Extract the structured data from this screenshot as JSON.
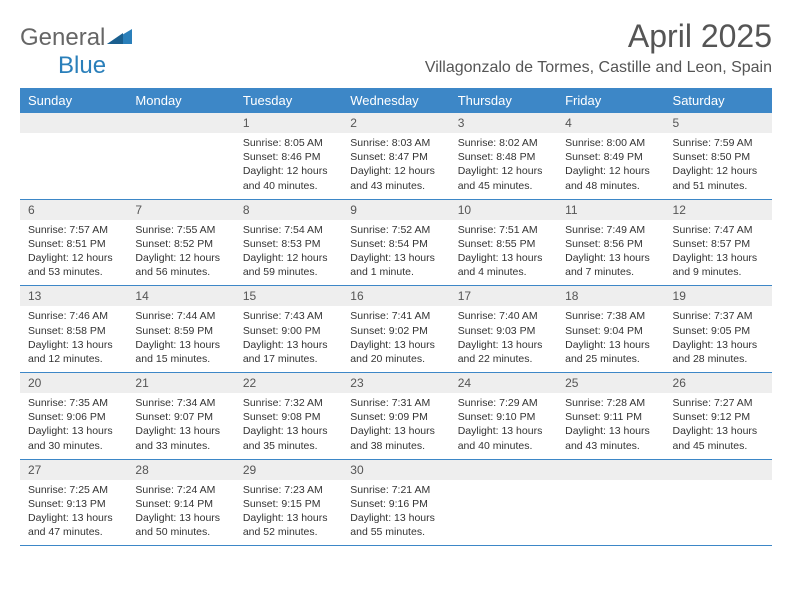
{
  "logo": {
    "word1": "General",
    "word2": "Blue"
  },
  "title": "April 2025",
  "location": "Villagonzalo de Tormes, Castille and Leon, Spain",
  "colors": {
    "header_bg": "#3d87c7",
    "header_text": "#ffffff",
    "daynum_bg": "#eeeeee",
    "text": "#333333",
    "border": "#3d87c7",
    "logo_gray": "#666666",
    "logo_blue": "#2a7fba"
  },
  "day_headers": [
    "Sunday",
    "Monday",
    "Tuesday",
    "Wednesday",
    "Thursday",
    "Friday",
    "Saturday"
  ],
  "weeks": [
    {
      "nums": [
        "",
        "",
        "1",
        "2",
        "3",
        "4",
        "5"
      ],
      "cells": [
        null,
        null,
        {
          "sunrise": "8:05 AM",
          "sunset": "8:46 PM",
          "daylight": "12 hours and 40 minutes."
        },
        {
          "sunrise": "8:03 AM",
          "sunset": "8:47 PM",
          "daylight": "12 hours and 43 minutes."
        },
        {
          "sunrise": "8:02 AM",
          "sunset": "8:48 PM",
          "daylight": "12 hours and 45 minutes."
        },
        {
          "sunrise": "8:00 AM",
          "sunset": "8:49 PM",
          "daylight": "12 hours and 48 minutes."
        },
        {
          "sunrise": "7:59 AM",
          "sunset": "8:50 PM",
          "daylight": "12 hours and 51 minutes."
        }
      ]
    },
    {
      "nums": [
        "6",
        "7",
        "8",
        "9",
        "10",
        "11",
        "12"
      ],
      "cells": [
        {
          "sunrise": "7:57 AM",
          "sunset": "8:51 PM",
          "daylight": "12 hours and 53 minutes."
        },
        {
          "sunrise": "7:55 AM",
          "sunset": "8:52 PM",
          "daylight": "12 hours and 56 minutes."
        },
        {
          "sunrise": "7:54 AM",
          "sunset": "8:53 PM",
          "daylight": "12 hours and 59 minutes."
        },
        {
          "sunrise": "7:52 AM",
          "sunset": "8:54 PM",
          "daylight": "13 hours and 1 minute."
        },
        {
          "sunrise": "7:51 AM",
          "sunset": "8:55 PM",
          "daylight": "13 hours and 4 minutes."
        },
        {
          "sunrise": "7:49 AM",
          "sunset": "8:56 PM",
          "daylight": "13 hours and 7 minutes."
        },
        {
          "sunrise": "7:47 AM",
          "sunset": "8:57 PM",
          "daylight": "13 hours and 9 minutes."
        }
      ]
    },
    {
      "nums": [
        "13",
        "14",
        "15",
        "16",
        "17",
        "18",
        "19"
      ],
      "cells": [
        {
          "sunrise": "7:46 AM",
          "sunset": "8:58 PM",
          "daylight": "13 hours and 12 minutes."
        },
        {
          "sunrise": "7:44 AM",
          "sunset": "8:59 PM",
          "daylight": "13 hours and 15 minutes."
        },
        {
          "sunrise": "7:43 AM",
          "sunset": "9:00 PM",
          "daylight": "13 hours and 17 minutes."
        },
        {
          "sunrise": "7:41 AM",
          "sunset": "9:02 PM",
          "daylight": "13 hours and 20 minutes."
        },
        {
          "sunrise": "7:40 AM",
          "sunset": "9:03 PM",
          "daylight": "13 hours and 22 minutes."
        },
        {
          "sunrise": "7:38 AM",
          "sunset": "9:04 PM",
          "daylight": "13 hours and 25 minutes."
        },
        {
          "sunrise": "7:37 AM",
          "sunset": "9:05 PM",
          "daylight": "13 hours and 28 minutes."
        }
      ]
    },
    {
      "nums": [
        "20",
        "21",
        "22",
        "23",
        "24",
        "25",
        "26"
      ],
      "cells": [
        {
          "sunrise": "7:35 AM",
          "sunset": "9:06 PM",
          "daylight": "13 hours and 30 minutes."
        },
        {
          "sunrise": "7:34 AM",
          "sunset": "9:07 PM",
          "daylight": "13 hours and 33 minutes."
        },
        {
          "sunrise": "7:32 AM",
          "sunset": "9:08 PM",
          "daylight": "13 hours and 35 minutes."
        },
        {
          "sunrise": "7:31 AM",
          "sunset": "9:09 PM",
          "daylight": "13 hours and 38 minutes."
        },
        {
          "sunrise": "7:29 AM",
          "sunset": "9:10 PM",
          "daylight": "13 hours and 40 minutes."
        },
        {
          "sunrise": "7:28 AM",
          "sunset": "9:11 PM",
          "daylight": "13 hours and 43 minutes."
        },
        {
          "sunrise": "7:27 AM",
          "sunset": "9:12 PM",
          "daylight": "13 hours and 45 minutes."
        }
      ]
    },
    {
      "nums": [
        "27",
        "28",
        "29",
        "30",
        "",
        "",
        ""
      ],
      "cells": [
        {
          "sunrise": "7:25 AM",
          "sunset": "9:13 PM",
          "daylight": "13 hours and 47 minutes."
        },
        {
          "sunrise": "7:24 AM",
          "sunset": "9:14 PM",
          "daylight": "13 hours and 50 minutes."
        },
        {
          "sunrise": "7:23 AM",
          "sunset": "9:15 PM",
          "daylight": "13 hours and 52 minutes."
        },
        {
          "sunrise": "7:21 AM",
          "sunset": "9:16 PM",
          "daylight": "13 hours and 55 minutes."
        },
        null,
        null,
        null
      ]
    }
  ],
  "labels": {
    "sunrise": "Sunrise: ",
    "sunset": "Sunset: ",
    "daylight": "Daylight: "
  }
}
